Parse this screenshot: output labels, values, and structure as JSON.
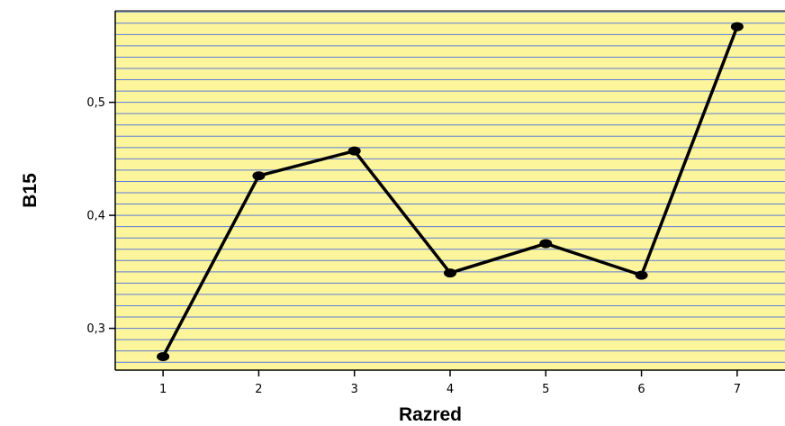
{
  "chart_data": {
    "type": "line",
    "xlabel": "Razred",
    "ylabel": "B15",
    "x": [
      1,
      2,
      3,
      4,
      5,
      6,
      7
    ],
    "x_tick_labels": [
      "1",
      "2",
      "3",
      "4",
      "5",
      "6",
      "7"
    ],
    "values": [
      0.275,
      0.435,
      0.457,
      0.349,
      0.375,
      0.347,
      0.567
    ],
    "y_ticks": [
      0.3,
      0.4,
      0.5
    ],
    "y_tick_labels": [
      "0,3",
      "0,4",
      "0,5"
    ],
    "xlim": [
      0.5,
      7.5
    ],
    "ylim": [
      0.263,
      0.581
    ],
    "grid": "horizontal",
    "grid_step": 0.01,
    "colors": {
      "plot_background": "#fdf59b",
      "grid_line": "#5b7bd6",
      "line": "#000000",
      "marker": "#000000"
    }
  }
}
